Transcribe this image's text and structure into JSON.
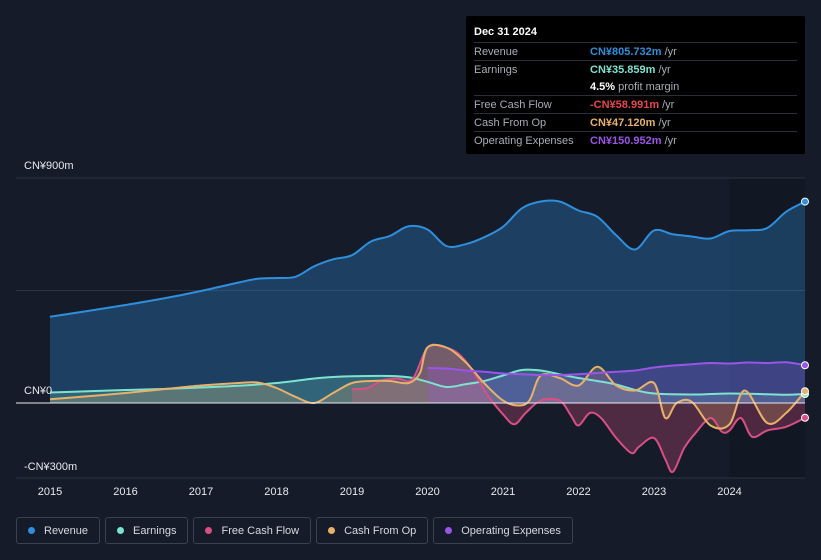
{
  "colors": {
    "revenue": "#2f8fdc",
    "earnings": "#7de3cf",
    "free_cash_flow": "#d74f84",
    "cash_from_op": "#e7b16a",
    "operating_expenses": "#9b55e6"
  },
  "tooltip": {
    "date": "Dec 31 2024",
    "rows": [
      {
        "label": "Revenue",
        "value": "CN¥805.732m",
        "unit": "/yr",
        "color": "#2f8fdc"
      },
      {
        "label": "Earnings",
        "value": "CN¥35.859m",
        "unit": "/yr",
        "color": "#7de3cf"
      },
      {
        "label": "",
        "value": "4.5%",
        "unit": "profit margin",
        "color": "#ffffff"
      },
      {
        "label": "Free Cash Flow",
        "value": "-CN¥58.991m",
        "unit": "/yr",
        "color": "#e8464c"
      },
      {
        "label": "Cash From Op",
        "value": "CN¥47.120m",
        "unit": "/yr",
        "color": "#e7b16a"
      },
      {
        "label": "Operating Expenses",
        "value": "CN¥150.952m",
        "unit": "/yr",
        "color": "#9b55e6"
      }
    ]
  },
  "legend": [
    {
      "label": "Revenue",
      "color": "#2f8fdc"
    },
    {
      "label": "Earnings",
      "color": "#7de3cf"
    },
    {
      "label": "Free Cash Flow",
      "color": "#d74f84"
    },
    {
      "label": "Cash From Op",
      "color": "#e7b16a"
    },
    {
      "label": "Operating Expenses",
      "color": "#9b55e6"
    }
  ],
  "chart_data": {
    "type": "area",
    "y_unit": "CN¥ millions",
    "ylim": [
      -300,
      900
    ],
    "y_tick_labels": [
      {
        "value": 900,
        "label": "CN¥900m"
      },
      {
        "value": 0,
        "label": "CN¥0"
      },
      {
        "value": -300,
        "label": "-CN¥300m"
      }
    ],
    "x_tick_labels": [
      "2015",
      "2016",
      "2017",
      "2018",
      "2019",
      "2020",
      "2021",
      "2022",
      "2023",
      "2024"
    ],
    "x_tick_values": [
      2015,
      2016,
      2017,
      2018,
      2019,
      2020,
      2021,
      2022,
      2023,
      2024
    ],
    "xlim": [
      2014.55,
      2025.0
    ],
    "highlight_from": 2024.0,
    "series": [
      {
        "name": "Revenue",
        "key": "revenue",
        "x": [
          2015.0,
          2015.5,
          2016.0,
          2016.5,
          2017.0,
          2017.5,
          2017.75,
          2018.0,
          2018.25,
          2018.5,
          2018.75,
          2019.0,
          2019.25,
          2019.5,
          2019.75,
          2020.0,
          2020.25,
          2020.5,
          2020.75,
          2021.0,
          2021.25,
          2021.5,
          2021.75,
          2022.0,
          2022.25,
          2022.5,
          2022.75,
          2023.0,
          2023.25,
          2023.5,
          2023.75,
          2024.0,
          2024.25,
          2024.5,
          2024.75,
          2025.0
        ],
        "y": [
          345,
          368,
          392,
          418,
          448,
          482,
          497,
          500,
          505,
          547,
          575,
          591,
          646,
          668,
          707,
          694,
          628,
          635,
          663,
          705,
          779,
          806,
          806,
          770,
          745,
          671,
          614,
          690,
          675,
          666,
          658,
          688,
          691,
          700,
          765,
          805.7
        ]
      },
      {
        "name": "Earnings",
        "key": "earnings",
        "x": [
          2015.0,
          2015.5,
          2016.0,
          2016.5,
          2017.0,
          2017.5,
          2018.0,
          2018.5,
          2018.75,
          2019.0,
          2019.5,
          2019.75,
          2020.0,
          2020.25,
          2020.5,
          2020.75,
          2021.0,
          2021.25,
          2021.5,
          2021.75,
          2022.0,
          2022.25,
          2022.5,
          2022.75,
          2023.0,
          2023.5,
          2023.75,
          2024.0,
          2024.25,
          2024.5,
          2024.75,
          2025.0
        ],
        "y": [
          42,
          47,
          52,
          56,
          62,
          69,
          80,
          98,
          104,
          107,
          108,
          103,
          85,
          64,
          75,
          88,
          110,
          132,
          130,
          115,
          100,
          88,
          74,
          52,
          38,
          34,
          36,
          38,
          37,
          35,
          33,
          35.9
        ]
      },
      {
        "name": "Free Cash Flow",
        "key": "free_cash_flow",
        "x": [
          2019.0,
          2019.2,
          2019.4,
          2019.6,
          2019.8,
          2020.0,
          2020.2,
          2020.4,
          2020.6,
          2020.8,
          2021.0,
          2021.15,
          2021.3,
          2021.5,
          2021.75,
          2021.9,
          2022.0,
          2022.15,
          2022.3,
          2022.5,
          2022.7,
          2022.8,
          2023.0,
          2023.15,
          2023.25,
          2023.4,
          2023.55,
          2023.75,
          2023.9,
          2024.0,
          2024.15,
          2024.3,
          2024.5,
          2024.75,
          2025.0
        ],
        "y": [
          55,
          60,
          90,
          98,
          95,
          222,
          225,
          200,
          130,
          30,
          -45,
          -85,
          -40,
          10,
          10,
          -50,
          -90,
          -40,
          -60,
          -140,
          -200,
          -175,
          -140,
          -225,
          -275,
          -180,
          -120,
          -60,
          -115,
          -110,
          -60,
          -135,
          -110,
          -95,
          -59
        ]
      },
      {
        "name": "Cash From Op",
        "key": "cash_from_op",
        "x": [
          2015.0,
          2015.5,
          2016.0,
          2016.5,
          2017.0,
          2017.5,
          2017.75,
          2018.0,
          2018.25,
          2018.5,
          2018.75,
          2019.0,
          2019.25,
          2019.5,
          2019.75,
          2019.9,
          2020.0,
          2020.25,
          2020.5,
          2020.75,
          2021.0,
          2021.2,
          2021.35,
          2021.5,
          2021.75,
          2022.0,
          2022.25,
          2022.5,
          2022.75,
          2023.0,
          2023.15,
          2023.3,
          2023.5,
          2023.75,
          2024.0,
          2024.2,
          2024.5,
          2024.75,
          2025.0
        ],
        "y": [
          15,
          27,
          40,
          55,
          70,
          80,
          82,
          60,
          25,
          0,
          40,
          80,
          88,
          88,
          80,
          120,
          222,
          222,
          165,
          80,
          10,
          -10,
          10,
          110,
          100,
          70,
          145,
          70,
          50,
          80,
          -60,
          0,
          5,
          -90,
          -85,
          50,
          -80,
          -40,
          47
        ]
      },
      {
        "name": "Operating Expenses",
        "key": "operating_expenses",
        "x": [
          2020.0,
          2020.25,
          2020.5,
          2020.75,
          2021.0,
          2021.25,
          2021.5,
          2021.75,
          2022.0,
          2022.25,
          2022.5,
          2022.75,
          2023.0,
          2023.25,
          2023.5,
          2023.75,
          2024.0,
          2024.25,
          2024.5,
          2024.75,
          2025.0
        ],
        "y": [
          140,
          138,
          130,
          125,
          118,
          115,
          112,
          112,
          115,
          120,
          125,
          130,
          142,
          150,
          155,
          160,
          158,
          162,
          160,
          163,
          151
        ]
      }
    ]
  }
}
